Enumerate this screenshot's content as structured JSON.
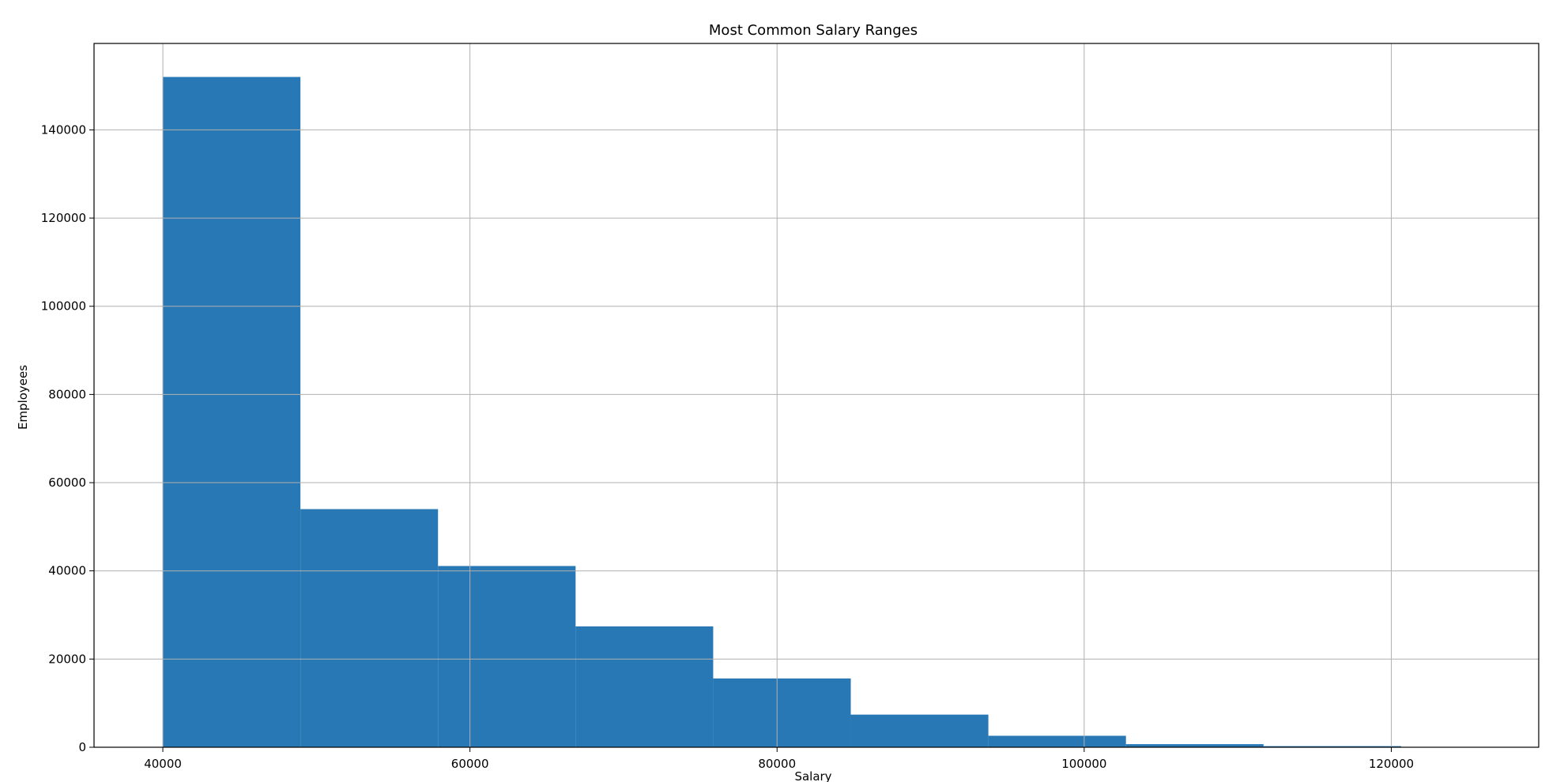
{
  "chart_data": {
    "type": "bar",
    "title": "Most Common Salary Ranges",
    "xlabel": "Salary",
    "ylabel": "Employees",
    "bins": [
      {
        "start": 40000,
        "end": 48960,
        "count": 152000
      },
      {
        "start": 48960,
        "end": 57920,
        "count": 54000
      },
      {
        "start": 57920,
        "end": 66880,
        "count": 41100
      },
      {
        "start": 66880,
        "end": 75840,
        "count": 27400
      },
      {
        "start": 75840,
        "end": 84800,
        "count": 15600
      },
      {
        "start": 84800,
        "end": 93760,
        "count": 7400
      },
      {
        "start": 93760,
        "end": 102720,
        "count": 2600
      },
      {
        "start": 102720,
        "end": 111680,
        "count": 700
      },
      {
        "start": 111680,
        "end": 120640,
        "count": 250
      },
      {
        "start": 120640,
        "end": 129600,
        "count": 50
      }
    ],
    "xlim": [
      35520,
      129600
    ],
    "ylim": [
      0,
      159600
    ],
    "xticks": [
      40000,
      60000,
      80000,
      100000,
      120000
    ],
    "yticks": [
      0,
      20000,
      40000,
      60000,
      80000,
      100000,
      120000,
      140000
    ],
    "grid": true,
    "bar_color": "#2878b5"
  }
}
